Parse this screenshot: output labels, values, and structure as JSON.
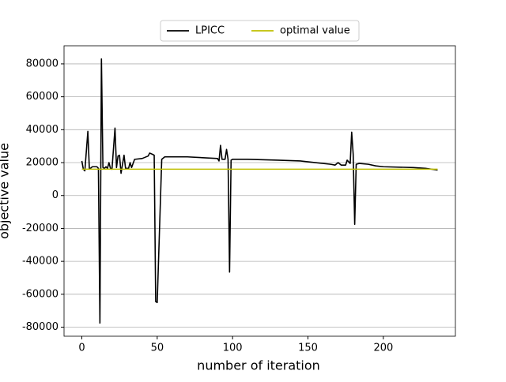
{
  "chart_data": {
    "type": "line",
    "xlabel": "number of iteration",
    "ylabel": "objective value",
    "xlim": [
      -11.8,
      247.8
    ],
    "ylim": [
      -85500,
      91000
    ],
    "xticks": [
      0,
      50,
      100,
      150,
      200
    ],
    "yticks": [
      -80000,
      -60000,
      -40000,
      -20000,
      0,
      20000,
      40000,
      60000,
      80000
    ],
    "grid": true,
    "legend": "upper center",
    "series": [
      {
        "name": "LPICC",
        "color": "#000000",
        "x": [
          0,
          1,
          2,
          4,
          5,
          7,
          10,
          11,
          12,
          13,
          14,
          15,
          16,
          17,
          18,
          19,
          20,
          22,
          23,
          24,
          25,
          26,
          27,
          28,
          29,
          31,
          32,
          33,
          35,
          40,
          44,
          45,
          47,
          48,
          49,
          50,
          53,
          55,
          70,
          90,
          91,
          92,
          93,
          95,
          96,
          97,
          98,
          99,
          100,
          110,
          130,
          145,
          155,
          165,
          168,
          170,
          172,
          175,
          176,
          178,
          179,
          180,
          181,
          182,
          184,
          190,
          195,
          200,
          220,
          228,
          232,
          236
        ],
        "values": [
          21000,
          16000,
          15000,
          39000,
          16000,
          17500,
          17500,
          16500,
          -77500,
          83000,
          17000,
          16500,
          17500,
          16500,
          20000,
          16500,
          16000,
          41000,
          17000,
          24000,
          24500,
          13500,
          19000,
          24500,
          16500,
          16500,
          20000,
          17000,
          22000,
          22500,
          24000,
          25800,
          25000,
          24500,
          -64500,
          -65000,
          22000,
          23500,
          23500,
          22500,
          21000,
          30500,
          22000,
          22000,
          28000,
          22000,
          -46500,
          21500,
          22000,
          22000,
          21500,
          21000,
          20000,
          19000,
          18500,
          20000,
          18500,
          18500,
          21500,
          19500,
          38500,
          25000,
          -17500,
          19000,
          19500,
          19000,
          18000,
          17500,
          17000,
          16500,
          16000,
          15500
        ]
      },
      {
        "name": "optimal value",
        "color": "#bfbf00",
        "x": [
          0,
          236
        ],
        "values": [
          16000,
          16000
        ]
      }
    ]
  }
}
